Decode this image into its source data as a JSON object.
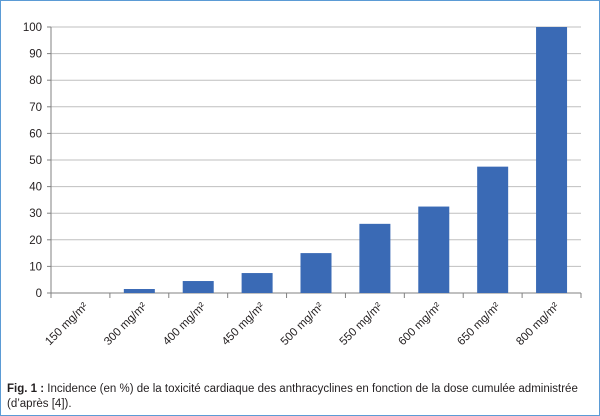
{
  "chart_data": {
    "type": "bar",
    "categories": [
      "150 mg/m²",
      "300 mg/m²",
      "400 mg/m²",
      "450 mg/m²",
      "500 mg/m²",
      "550 mg/m²",
      "600 mg/m²",
      "650 mg/m²",
      "800 mg/m²"
    ],
    "values": [
      0,
      1.5,
      4.5,
      7.5,
      15,
      26,
      32.5,
      47.5,
      100
    ],
    "ylim": [
      0,
      100
    ],
    "yticks": [
      0,
      10,
      20,
      30,
      40,
      50,
      60,
      70,
      80,
      90,
      100
    ],
    "grid": true,
    "bar_color": "#3a6ab5",
    "grid_color": "#bfbfbf"
  },
  "caption": {
    "label": "Fig. 1 :",
    "text": " Incidence (en %) de la toxicité cardiaque des anthracyclines en fonction de la dose cumulée administrée (d’après [4])."
  }
}
